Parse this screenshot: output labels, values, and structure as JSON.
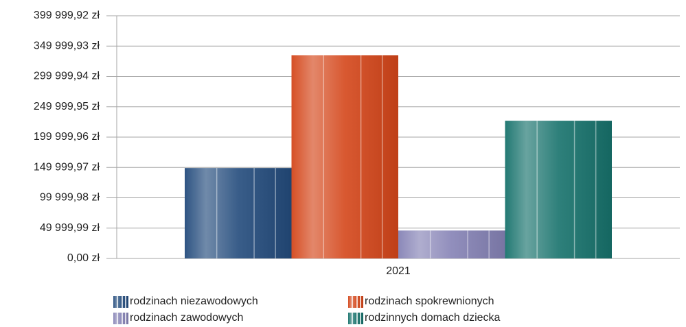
{
  "chart_data": {
    "type": "bar",
    "categories": [
      "2021"
    ],
    "series": [
      {
        "name": "rodzinach niezawodowych",
        "color": "#234b7c",
        "values": [
          149000
        ]
      },
      {
        "name": "rodzinach spokrewnionych",
        "color": "#d4461a",
        "values": [
          335000
        ]
      },
      {
        "name": "rodzinach zawodowych",
        "color": "#8582b5",
        "values": [
          46000
        ]
      },
      {
        "name": "rodzinnych domach dziecka",
        "color": "#17726c",
        "values": [
          227000
        ]
      }
    ],
    "ylim": [
      0,
      399999.92
    ],
    "yticks": [
      {
        "value": 0,
        "label": "0,00 zł"
      },
      {
        "value": 49999.99,
        "label": "49 999,99 zł"
      },
      {
        "value": 99999.98,
        "label": "99 999,98 zł"
      },
      {
        "value": 149999.97,
        "label": "149 999,97 zł"
      },
      {
        "value": 199999.96,
        "label": "199 999,96 zł"
      },
      {
        "value": 249999.95,
        "label": "249 999,95 zł"
      },
      {
        "value": 299999.94,
        "label": "299 999,94 zł"
      },
      {
        "value": 349999.93,
        "label": "349 999,93 zł"
      },
      {
        "value": 399999.92,
        "label": "399 999,92 zł"
      }
    ],
    "grid": true,
    "legend": "bottom"
  }
}
